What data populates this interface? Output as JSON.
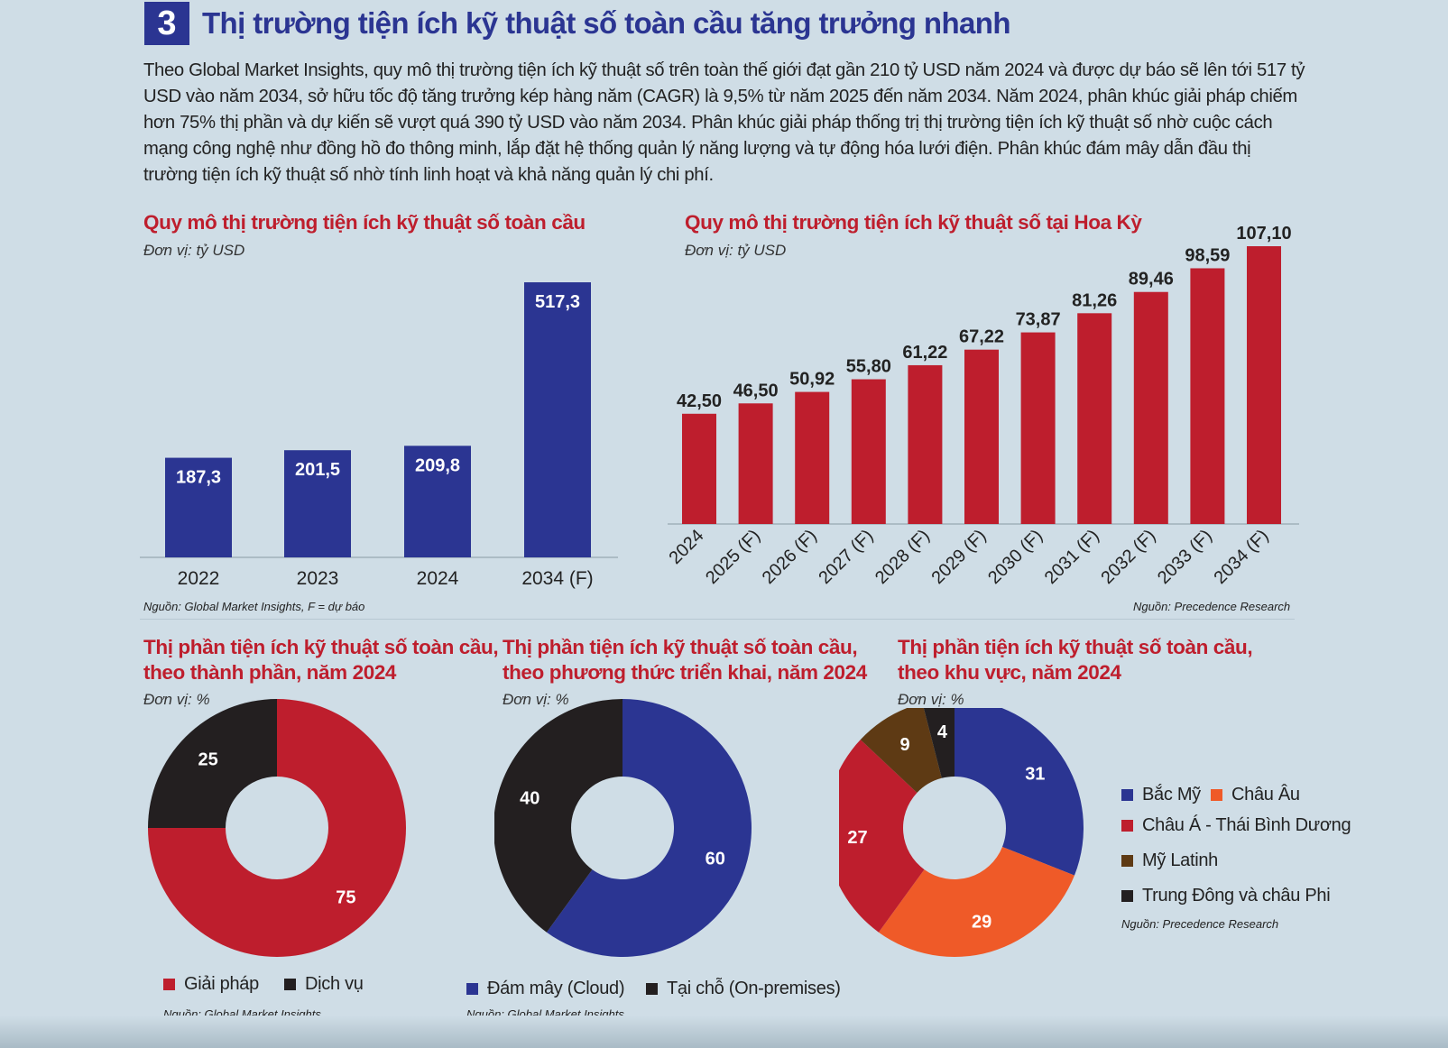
{
  "header": {
    "number": "3",
    "title": "Thị trường tiện ích kỹ thuật số toàn cầu tăng trưởng nhanh"
  },
  "intro": "Theo Global Market Insights, quy mô thị trường tiện ích kỹ thuật số trên toàn thế giới đạt gần 210 tỷ USD năm 2024 và được dự báo sẽ lên tới 517 tỷ USD vào năm 2034, sở hữu tốc độ tăng trưởng kép hàng năm (CAGR) là 9,5% từ năm 2025 đến năm 2034. Năm 2024, phân khúc giải pháp chiếm hơn 75% thị phần và dự kiến sẽ vượt quá 390 tỷ USD vào năm 2034. Phân khúc giải pháp thống trị thị trường tiện ích kỹ thuật số nhờ cuộc cách mạng công nghệ như đồng hồ đo thông minh, lắp đặt hệ thống quản lý năng lượng và tự động hóa lưới điện. Phân khúc đám mây dẫn đầu thị trường tiện ích kỹ thuật số nhờ tính linh hoạt và khả năng quản lý chi phí.",
  "colors": {
    "blue": "#2b3592",
    "red": "#be1e2d",
    "black": "#231f20",
    "orange": "#ef5a28",
    "brown": "#5e3a14"
  },
  "chart_data": [
    {
      "type": "bar",
      "title": "Quy mô thị trường tiện ích kỹ thuật số toàn cầu",
      "unit": "Đơn vị: tỷ USD",
      "categories": [
        "2022",
        "2023",
        "2024",
        "2034 (F)"
      ],
      "values": [
        187.3,
        201.5,
        209.8,
        517.3
      ],
      "labels": [
        "187,3",
        "201,5",
        "209,8",
        "517,3"
      ],
      "source": "Nguồn: Global Market Insights, F = dự báo"
    },
    {
      "type": "bar",
      "title": "Quy mô thị trường tiện ích kỹ thuật số tại Hoa Kỳ",
      "unit": "Đơn vị: tỷ USD",
      "categories": [
        "2024",
        "2025 (F)",
        "2026 (F)",
        "2027 (F)",
        "2028 (F)",
        "2029 (F)",
        "2030 (F)",
        "2031 (F)",
        "2032 (F)",
        "2033 (F)",
        "2034 (F)"
      ],
      "values": [
        42.5,
        46.5,
        50.92,
        55.8,
        61.22,
        67.22,
        73.87,
        81.26,
        89.46,
        98.59,
        107.1
      ],
      "labels": [
        "42,50",
        "46,50",
        "50,92",
        "55,80",
        "61,22",
        "67,22",
        "73,87",
        "81,26",
        "89,46",
        "98,59",
        "107,10"
      ],
      "source": "Nguồn: Precedence Research"
    },
    {
      "type": "pie",
      "title_line1": "Thị phần tiện ích kỹ thuật số toàn cầu,",
      "title_line2": "theo thành phần, năm 2024",
      "unit": "Đơn vị: %",
      "slices": [
        {
          "name": "Giải pháp",
          "value": 75,
          "label": "75",
          "color": "#be1e2d"
        },
        {
          "name": "Dịch vụ",
          "value": 25,
          "label": "25",
          "color": "#231f20"
        }
      ],
      "source": "Nguồn: Global Market Insights"
    },
    {
      "type": "pie",
      "title_line1": "Thị phần tiện ích kỹ thuật số toàn cầu,",
      "title_line2": "theo phương thức triển khai, năm 2024",
      "unit": "Đơn vị: %",
      "slices": [
        {
          "name": "Đám mây (Cloud)",
          "value": 60,
          "label": "60",
          "color": "#2b3592"
        },
        {
          "name": "Tại chỗ (On-premises)",
          "value": 40,
          "label": "40",
          "color": "#231f20"
        }
      ],
      "source": "Nguồn: Global Market Insights"
    },
    {
      "type": "pie",
      "title_line1": "Thị phần tiện ích kỹ thuật số toàn cầu,",
      "title_line2": "theo khu vực, năm 2024",
      "unit": "Đơn vị: %",
      "slices": [
        {
          "name": "Bắc Mỹ",
          "value": 31,
          "label": "31",
          "color": "#2b3592"
        },
        {
          "name": "Châu Âu",
          "value": 29,
          "label": "29",
          "color": "#ef5a28"
        },
        {
          "name": "Châu Á - Thái Bình Dương",
          "value": 27,
          "label": "27",
          "color": "#be1e2d"
        },
        {
          "name": "Mỹ Latinh",
          "value": 9,
          "label": "9",
          "color": "#5e3a14"
        },
        {
          "name": "Trung Đông và châu Phi",
          "value": 4,
          "label": "4",
          "color": "#231f20"
        }
      ],
      "source": "Nguồn: Precedence Research"
    }
  ]
}
